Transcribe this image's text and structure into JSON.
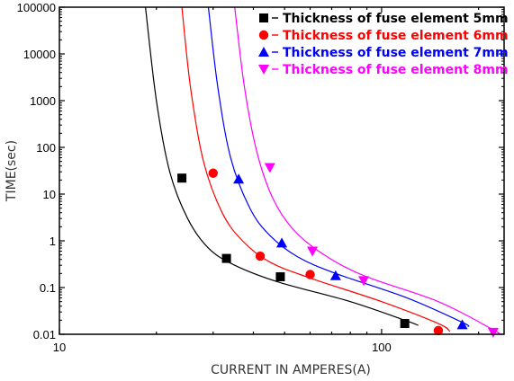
{
  "chart_data": {
    "type": "scatter",
    "xlabel": "CURRENT IN AMPERES(A)",
    "ylabel": "TIME(sec)",
    "x_scale": "log",
    "y_scale": "log",
    "xlim": [
      10,
      240
    ],
    "ylim": [
      0.01,
      100000
    ],
    "x_ticks": [
      10,
      100
    ],
    "x_tick_labels": [
      "10",
      "100"
    ],
    "y_ticks": [
      0.01,
      0.1,
      1,
      10,
      100,
      1000,
      10000,
      100000
    ],
    "y_tick_labels": [
      "0.01",
      "0.1",
      "1",
      "10",
      "100",
      "1000",
      "10000",
      "100000"
    ],
    "grid": false,
    "legend_position": "top-right",
    "series": [
      {
        "name": "Thickness of fuse element 5mm",
        "marker": "square",
        "color": "#000000",
        "points": [
          [
            24,
            22
          ],
          [
            33,
            0.42
          ],
          [
            48.5,
            0.17
          ],
          [
            118,
            0.017
          ]
        ],
        "curve": [
          [
            18.5,
            100000
          ],
          [
            20,
            1000
          ],
          [
            22,
            30
          ],
          [
            25,
            3
          ],
          [
            29,
            0.7
          ],
          [
            35,
            0.3
          ],
          [
            48,
            0.13
          ],
          [
            80,
            0.05
          ],
          [
            118,
            0.02
          ],
          [
            130,
            0.0155
          ]
        ]
      },
      {
        "name": "Thickness of fuse element 6mm",
        "marker": "circle",
        "color": "#ff0000",
        "points": [
          [
            30,
            28
          ],
          [
            42,
            0.47
          ],
          [
            60,
            0.19
          ],
          [
            150,
            0.012
          ]
        ],
        "curve": [
          [
            24,
            100000
          ],
          [
            25.5,
            2000
          ],
          [
            28,
            50
          ],
          [
            32,
            4
          ],
          [
            37,
            1
          ],
          [
            45,
            0.35
          ],
          [
            60,
            0.16
          ],
          [
            100,
            0.05
          ],
          [
            150,
            0.017
          ],
          [
            163,
            0.0115
          ]
        ]
      },
      {
        "name": "Thickness of fuse element 7mm",
        "marker": "triangle-up",
        "color": "#0000ff",
        "points": [
          [
            36,
            21
          ],
          [
            49,
            0.9
          ],
          [
            72,
            0.18
          ],
          [
            178,
            0.016
          ]
        ],
        "curve": [
          [
            29,
            100000
          ],
          [
            31,
            2000
          ],
          [
            34,
            60
          ],
          [
            39,
            5
          ],
          [
            45,
            1.3
          ],
          [
            55,
            0.45
          ],
          [
            72,
            0.2
          ],
          [
            120,
            0.06
          ],
          [
            178,
            0.018
          ],
          [
            186,
            0.0145
          ]
        ]
      },
      {
        "name": "Thickness of fuse element 8mm",
        "marker": "triangle-down",
        "color": "#ff00ff",
        "points": [
          [
            45,
            37
          ],
          [
            61,
            0.6
          ],
          [
            88,
            0.14
          ],
          [
            222,
            0.011
          ]
        ],
        "curve": [
          [
            35,
            100000
          ],
          [
            37.5,
            2000
          ],
          [
            41,
            80
          ],
          [
            46,
            8
          ],
          [
            53,
            1.8
          ],
          [
            65,
            0.55
          ],
          [
            88,
            0.18
          ],
          [
            150,
            0.05
          ],
          [
            222,
            0.0125
          ],
          [
            230,
            0.0105
          ]
        ]
      }
    ]
  }
}
